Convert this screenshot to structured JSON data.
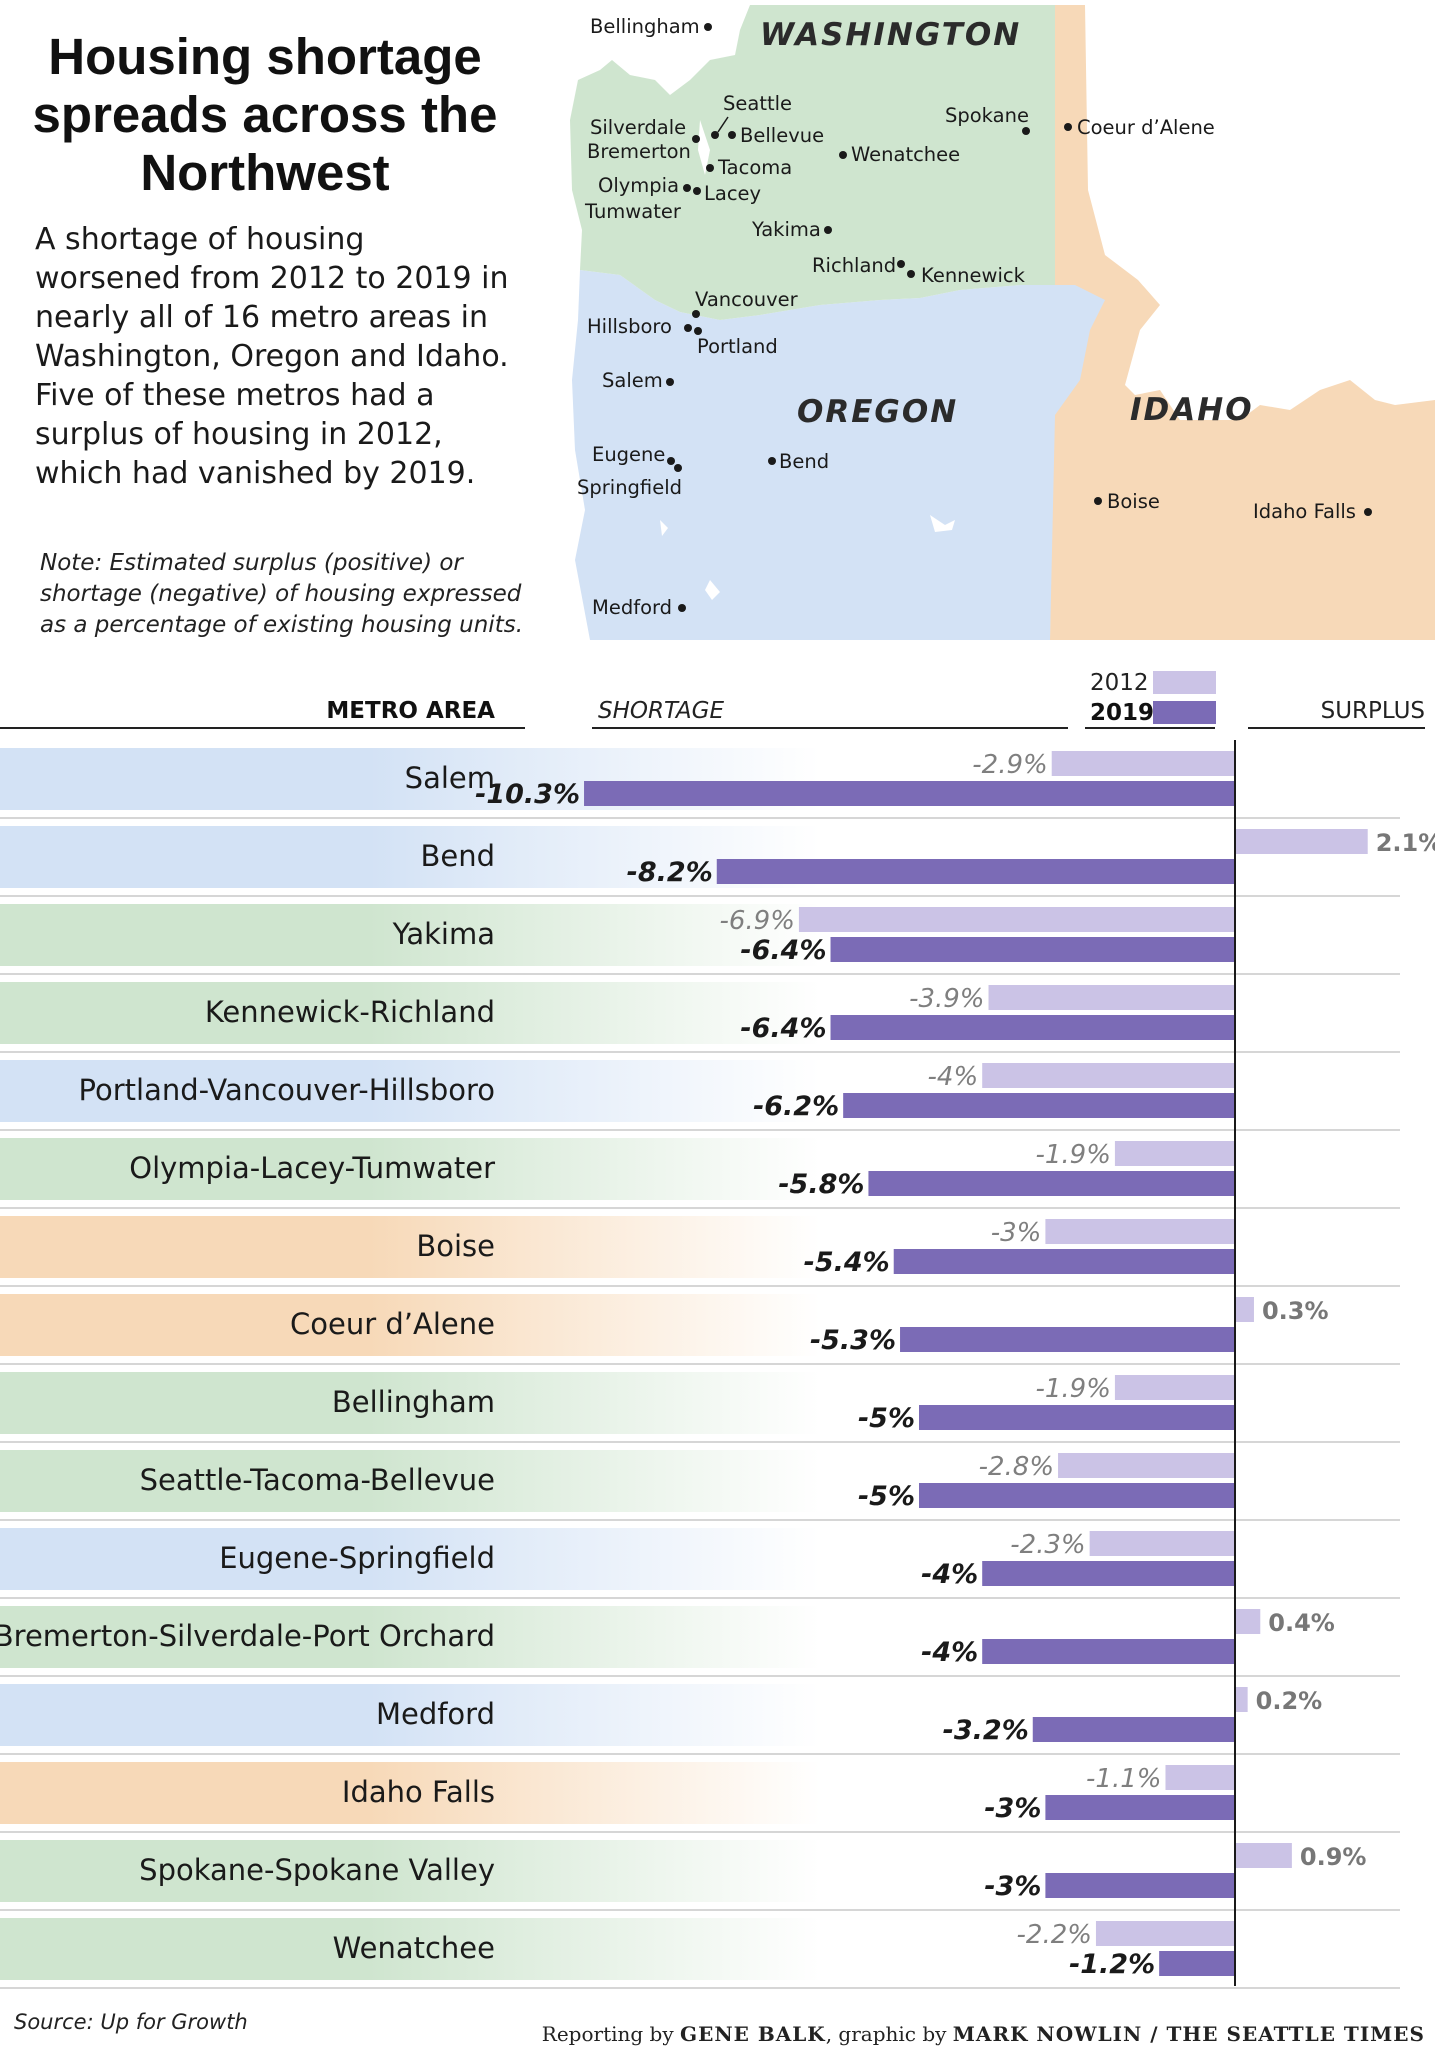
{
  "header": {
    "title": "Housing shortage spreads across the Northwest",
    "intro": "A shortage of housing worsened from 2012 to 2019 in nearly all of 16 metro areas in Washington, Oregon and Idaho. Five of these metros had a surplus of housing in 2012, which had vanished by 2019.",
    "note": "Note: Estimated surplus (positive) or shortage (negative) of housing expressed as a percentage of existing housing units."
  },
  "map": {
    "states": [
      {
        "name": "WASHINGTON",
        "color": "#cfe5cf"
      },
      {
        "name": "OREGON",
        "color": "#d3e2f5"
      },
      {
        "name": "IDAHO",
        "color": "#f7d9b8"
      }
    ],
    "cities": [
      "Bellingham",
      "Seattle",
      "Silverdale",
      "Bellevue",
      "Bremerton",
      "Tacoma",
      "Olympia",
      "Lacey",
      "Tumwater",
      "Spokane",
      "Coeur d’Alene",
      "Wenatchee",
      "Yakima",
      "Richland",
      "Kennewick",
      "Vancouver",
      "Hillsboro",
      "Portland",
      "Salem",
      "Bend",
      "Eugene",
      "Springfield",
      "Medford",
      "Boise",
      "Idaho Falls"
    ]
  },
  "chart_data": {
    "type": "bar",
    "orientation": "horizontal",
    "headers": {
      "metro": "METRO AREA",
      "shortage": "SHORTAGE",
      "surplus": "SURPLUS"
    },
    "series": [
      {
        "name": "2012",
        "color": "#cbc3e6"
      },
      {
        "name": "2019",
        "color": "#7b6bb6"
      }
    ],
    "state_colors": {
      "OR": "#d3e2f5",
      "WA": "#cfe5cf",
      "ID": "#f7d9b8"
    },
    "xlim": [
      -10.3,
      2.1
    ],
    "rows": [
      {
        "metro": "Salem",
        "state": "OR",
        "v2012": -2.9,
        "l2012": "-2.9%",
        "v2019": -10.3,
        "l2019": "-10.3%"
      },
      {
        "metro": "Bend",
        "state": "OR",
        "v2012": 2.1,
        "l2012": "2.1%",
        "v2019": -8.2,
        "l2019": "-8.2%"
      },
      {
        "metro": "Yakima",
        "state": "WA",
        "v2012": -6.9,
        "l2012": "-6.9%",
        "v2019": -6.4,
        "l2019": "-6.4%"
      },
      {
        "metro": "Kennewick-Richland",
        "state": "WA",
        "v2012": -3.9,
        "l2012": "-3.9%",
        "v2019": -6.4,
        "l2019": "-6.4%"
      },
      {
        "metro": "Portland-Vancouver-Hillsboro",
        "state": "OR",
        "v2012": -4,
        "l2012": "-4%",
        "v2019": -6.2,
        "l2019": "-6.2%"
      },
      {
        "metro": "Olympia-Lacey-Tumwater",
        "state": "WA",
        "v2012": -1.9,
        "l2012": "-1.9%",
        "v2019": -5.8,
        "l2019": "-5.8%"
      },
      {
        "metro": "Boise",
        "state": "ID",
        "v2012": -3,
        "l2012": "-3%",
        "v2019": -5.4,
        "l2019": "-5.4%"
      },
      {
        "metro": "Coeur d’Alene",
        "state": "ID",
        "v2012": 0.3,
        "l2012": "0.3%",
        "v2019": -5.3,
        "l2019": "-5.3%"
      },
      {
        "metro": "Bellingham",
        "state": "WA",
        "v2012": -1.9,
        "l2012": "-1.9%",
        "v2019": -5,
        "l2019": "-5%"
      },
      {
        "metro": "Seattle-Tacoma-Bellevue",
        "state": "WA",
        "v2012": -2.8,
        "l2012": "-2.8%",
        "v2019": -5,
        "l2019": "-5%"
      },
      {
        "metro": "Eugene-Springfield",
        "state": "OR",
        "v2012": -2.3,
        "l2012": "-2.3%",
        "v2019": -4,
        "l2019": "-4%"
      },
      {
        "metro": "Bremerton-Silverdale-Port Orchard",
        "state": "WA",
        "v2012": 0.4,
        "l2012": "0.4%",
        "v2019": -4,
        "l2019": "-4%"
      },
      {
        "metro": "Medford",
        "state": "OR",
        "v2012": 0.2,
        "l2012": "0.2%",
        "v2019": -3.2,
        "l2019": "-3.2%"
      },
      {
        "metro": "Idaho Falls",
        "state": "ID",
        "v2012": -1.1,
        "l2012": "-1.1%",
        "v2019": -3,
        "l2019": "-3%"
      },
      {
        "metro": "Spokane-Spokane Valley",
        "state": "WA",
        "v2012": 0.9,
        "l2012": "0.9%",
        "v2019": -3,
        "l2019": "-3%"
      },
      {
        "metro": "Wenatchee",
        "state": "WA",
        "v2012": -2.2,
        "l2012": "-2.2%",
        "v2019": -1.2,
        "l2019": "-1.2%"
      }
    ]
  },
  "footer": {
    "source": "Source: Up for Growth",
    "credit_prefix": "Reporting by",
    "reporter": "GENE BALK",
    "credit_middle": ", graphic by",
    "graphic": "MARK NOWLIN / THE SEATTLE TIMES"
  }
}
